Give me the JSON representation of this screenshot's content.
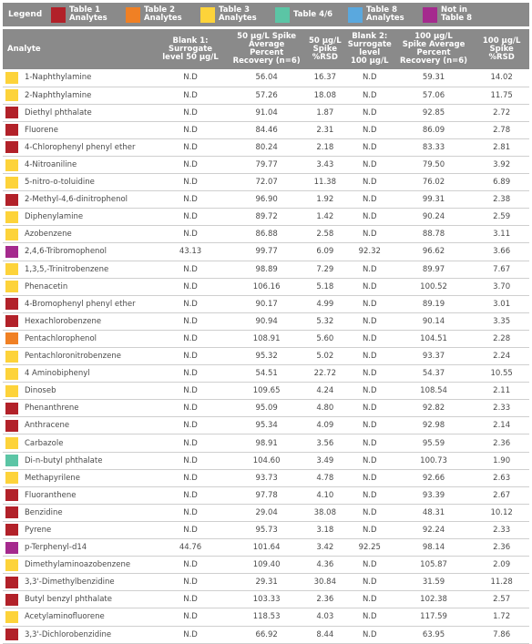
{
  "legend": {
    "title": "Legend",
    "items": [
      {
        "label": "Table 1\nAnalytes",
        "color": "#b22129"
      },
      {
        "label": "Table 2\nAnalytes",
        "color": "#f08024"
      },
      {
        "label": "Table 3\nAnalytes",
        "color": "#fdd33a"
      },
      {
        "label": "Table 4/6",
        "color": "#5bc5a5"
      },
      {
        "label": "Table 8\nAnalytes",
        "color": "#5aa8de"
      },
      {
        "label": "Not in Table 8",
        "color": "#a52a8e"
      }
    ]
  },
  "table": {
    "headers": {
      "analyte": "Analyte",
      "blank1": "Blank 1:\nSurrogate\nlevel 50 μg/L",
      "avg50": "50 μg/L Spike\nAverage Percent\nRecovery (n=6)",
      "rsd50": "50 μg/L\nSpike\n%RSD",
      "blank2": "Blank 2:\nSurrogate\nlevel\n100 μg/L",
      "avg100": "100 μg/L\nSpike Average\nPercent\nRecovery (n=6)",
      "rsd100": "100 μg/L\nSpike %RSD"
    },
    "rows": [
      {
        "color": "#fdd33a",
        "name": "1-Naphthylamine",
        "b1": "N.D",
        "a50": "56.04",
        "r50": "16.37",
        "b2": "N.D",
        "a100": "59.31",
        "r100": "14.02"
      },
      {
        "color": "#fdd33a",
        "name": "2-Naphthylamine",
        "b1": "N.D",
        "a50": "57.26",
        "r50": "18.08",
        "b2": "N.D",
        "a100": "57.06",
        "r100": "11.75"
      },
      {
        "color": "#b22129",
        "name": "Diethyl phthalate",
        "b1": "N.D",
        "a50": "91.04",
        "r50": "1.87",
        "b2": "N.D",
        "a100": "92.85",
        "r100": "2.72"
      },
      {
        "color": "#b22129",
        "name": "Fluorene",
        "b1": "N.D",
        "a50": "84.46",
        "r50": "2.31",
        "b2": "N.D",
        "a100": "86.09",
        "r100": "2.78"
      },
      {
        "color": "#b22129",
        "name": "4-Chlorophenyl phenyl ether",
        "b1": "N.D",
        "a50": "80.24",
        "r50": "2.18",
        "b2": "N.D",
        "a100": "83.33",
        "r100": "2.81"
      },
      {
        "color": "#fdd33a",
        "name": "4-Nitroaniline",
        "b1": "N.D",
        "a50": "79.77",
        "r50": "3.43",
        "b2": "N.D",
        "a100": "79.50",
        "r100": "3.92"
      },
      {
        "color": "#fdd33a",
        "name": "5-nitro-o-toluidine",
        "b1": "N.D",
        "a50": "72.07",
        "r50": "11.38",
        "b2": "N.D",
        "a100": "76.02",
        "r100": "6.89"
      },
      {
        "color": "#b22129",
        "name": "2-Methyl-4,6-dinitrophenol",
        "b1": "N.D",
        "a50": "96.90",
        "r50": "1.92",
        "b2": "N.D",
        "a100": "99.31",
        "r100": "2.38"
      },
      {
        "color": "#fdd33a",
        "name": "Diphenylamine",
        "b1": "N.D",
        "a50": "89.72",
        "r50": "1.42",
        "b2": "N.D",
        "a100": "90.24",
        "r100": "2.59"
      },
      {
        "color": "#fdd33a",
        "name": "Azobenzene",
        "b1": "N.D",
        "a50": "86.88",
        "r50": "2.58",
        "b2": "N.D",
        "a100": "88.78",
        "r100": "3.11"
      },
      {
        "color": "#a52a8e",
        "name": "2,4,6-Tribromophenol",
        "b1": "43.13",
        "a50": "99.77",
        "r50": "6.09",
        "b2": "92.32",
        "a100": "96.62",
        "r100": "3.66"
      },
      {
        "color": "#fdd33a",
        "name": "1,3,5,-Trinitrobenzene",
        "b1": "N.D",
        "a50": "98.89",
        "r50": "7.29",
        "b2": "N.D",
        "a100": "89.97",
        "r100": "7.67"
      },
      {
        "color": "#fdd33a",
        "name": "Phenacetin",
        "b1": "N.D",
        "a50": "106.16",
        "r50": "5.18",
        "b2": "N.D",
        "a100": "100.52",
        "r100": "3.70"
      },
      {
        "color": "#b22129",
        "name": "4-Bromophenyl phenyl ether",
        "b1": "N.D",
        "a50": "90.17",
        "r50": "4.99",
        "b2": "N.D",
        "a100": "89.19",
        "r100": "3.01"
      },
      {
        "color": "#b22129",
        "name": "Hexachlorobenzene",
        "b1": "N.D",
        "a50": "90.94",
        "r50": "5.32",
        "b2": "N.D",
        "a100": "90.14",
        "r100": "3.35"
      },
      {
        "color": "#f08024",
        "name": "Pentachlorophenol",
        "b1": "N.D",
        "a50": "108.91",
        "r50": "5.60",
        "b2": "N.D",
        "a100": "104.51",
        "r100": "2.28"
      },
      {
        "color": "#fdd33a",
        "name": "Pentachloronitrobenzene",
        "b1": "N.D",
        "a50": "95.32",
        "r50": "5.02",
        "b2": "N.D",
        "a100": "93.37",
        "r100": "2.24"
      },
      {
        "color": "#fdd33a",
        "name": "4 Aminobiphenyl",
        "b1": "N.D",
        "a50": "54.51",
        "r50": "22.72",
        "b2": "N.D",
        "a100": "54.37",
        "r100": "10.55"
      },
      {
        "color": "#fdd33a",
        "name": "Dinoseb",
        "b1": "N.D",
        "a50": "109.65",
        "r50": "4.24",
        "b2": "N.D",
        "a100": "108.54",
        "r100": "2.11"
      },
      {
        "color": "#b22129",
        "name": "Phenanthrene",
        "b1": "N.D",
        "a50": "95.09",
        "r50": "4.80",
        "b2": "N.D",
        "a100": "92.82",
        "r100": "2.33"
      },
      {
        "color": "#b22129",
        "name": "Anthracene",
        "b1": "N.D",
        "a50": "95.34",
        "r50": "4.09",
        "b2": "N.D",
        "a100": "92.98",
        "r100": "2.14"
      },
      {
        "color": "#fdd33a",
        "name": "Carbazole",
        "b1": "N.D",
        "a50": "98.91",
        "r50": "3.56",
        "b2": "N.D",
        "a100": "95.59",
        "r100": "2.36"
      },
      {
        "color": "#5bc5a5",
        "name": "Di-n-butyl phthalate",
        "b1": "N.D",
        "a50": "104.60",
        "r50": "3.49",
        "b2": "N.D",
        "a100": "100.73",
        "r100": "1.90"
      },
      {
        "color": "#fdd33a",
        "name": "Methapyrilene",
        "b1": "N.D",
        "a50": "93.73",
        "r50": "4.78",
        "b2": "N.D",
        "a100": "92.66",
        "r100": "2.63"
      },
      {
        "color": "#b22129",
        "name": "Fluoranthene",
        "b1": "N.D",
        "a50": "97.78",
        "r50": "4.10",
        "b2": "N.D",
        "a100": "93.39",
        "r100": "2.67"
      },
      {
        "color": "#b22129",
        "name": "Benzidine",
        "b1": "N.D",
        "a50": "29.04",
        "r50": "38.08",
        "b2": "N.D",
        "a100": "48.31",
        "r100": "10.12"
      },
      {
        "color": "#b22129",
        "name": "Pyrene",
        "b1": "N.D",
        "a50": "95.73",
        "r50": "3.18",
        "b2": "N.D",
        "a100": "92.24",
        "r100": "2.33"
      },
      {
        "color": "#a52a8e",
        "name": "p-Terphenyl-d14",
        "b1": "44.76",
        "a50": "101.64",
        "r50": "3.42",
        "b2": "92.25",
        "a100": "98.14",
        "r100": "2.36"
      },
      {
        "color": "#fdd33a",
        "name": "Dimethylaminoazobenzene",
        "b1": "N.D",
        "a50": "109.40",
        "r50": "4.36",
        "b2": "N.D",
        "a100": "105.87",
        "r100": "2.09"
      },
      {
        "color": "#b22129",
        "name": "3,3'-Dimethylbenzidine",
        "b1": "N.D",
        "a50": "29.31",
        "r50": "30.84",
        "b2": "N.D",
        "a100": "31.59",
        "r100": "11.28"
      },
      {
        "color": "#b22129",
        "name": "Butyl benzyl phthalate",
        "b1": "N.D",
        "a50": "103.33",
        "r50": "2.36",
        "b2": "N.D",
        "a100": "102.38",
        "r100": "2.57"
      },
      {
        "color": "#fdd33a",
        "name": "Acetylaminofluorene",
        "b1": "N.D",
        "a50": "118.53",
        "r50": "4.03",
        "b2": "N.D",
        "a100": "117.59",
        "r100": "1.72"
      },
      {
        "color": "#b22129",
        "name": "3,3'-Dichlorobenzidine",
        "b1": "N.D",
        "a50": "66.92",
        "r50": "8.44",
        "b2": "N.D",
        "a100": "63.95",
        "r100": "7.86"
      }
    ]
  }
}
